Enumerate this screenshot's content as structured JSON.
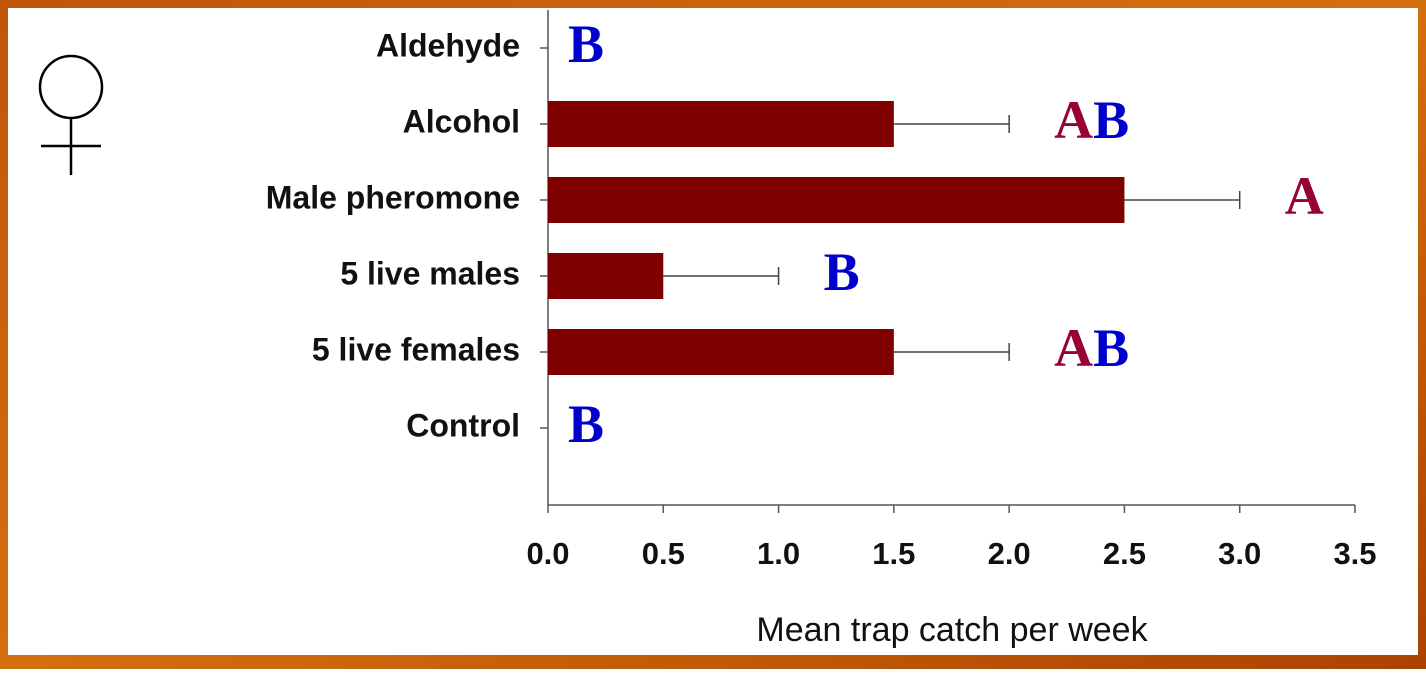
{
  "chart_data": {
    "type": "bar",
    "orientation": "horizontal",
    "categories": [
      "Aldehyde",
      "Alcohol",
      "Male pheromone",
      "5 live males",
      "5 live females",
      "Control"
    ],
    "values": [
      0,
      1.5,
      2.5,
      0.5,
      1.5,
      0
    ],
    "errors": [
      0,
      0.5,
      0.5,
      0.5,
      0.5,
      0
    ],
    "annotations": [
      "B",
      "AB",
      "A",
      "B",
      "AB",
      "B"
    ],
    "letter_colors": {
      "A": "#990033",
      "B": "#0000cc"
    },
    "color": "#800000",
    "x_label": "Mean trap catch per week",
    "xlim": [
      0,
      3.5
    ],
    "xticks": [
      {
        "value": 0,
        "label": "0.0"
      },
      0.5,
      {
        "value": 1,
        "label": "1.0"
      },
      1.5,
      {
        "value": 2,
        "label": "2.0"
      },
      2.5,
      {
        "value": 3,
        "label": "3.0"
      },
      3.5
    ]
  }
}
